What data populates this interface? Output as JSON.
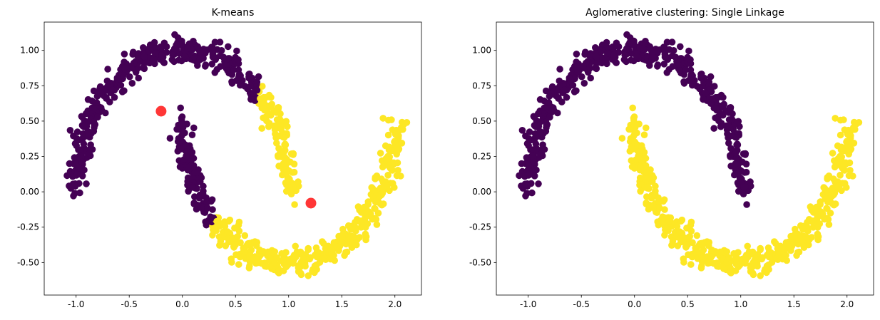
{
  "chart_data": [
    {
      "type": "scatter",
      "title": "K-means",
      "xlabel": "",
      "ylabel": "",
      "xlim": [
        -1.3,
        2.25
      ],
      "ylim": [
        -0.73,
        1.2
      ],
      "xticks": [
        "-1.0",
        "-0.5",
        "0.0",
        "0.5",
        "1.0",
        "1.5",
        "2.0"
      ],
      "yticks": [
        "-0.50",
        "-0.25",
        "0.00",
        "0.25",
        "0.50",
        "0.75",
        "1.00"
      ],
      "grid": false,
      "legend": "none",
      "series": [
        {
          "color": "#440154",
          "description": "cluster 0: upper moon arc from x=-1.1 to x=0.75 plus left part of lower moon up to x=0.3"
        },
        {
          "color": "#fde725",
          "description": "cluster 1: right end of upper moon (x>0.7) plus lower moon from x=0.3 to x=2.1"
        }
      ],
      "centers": {
        "color": "#ff2020",
        "x": [
          -0.2,
          1.21
        ],
        "y": [
          0.57,
          -0.08
        ]
      }
    },
    {
      "type": "scatter",
      "title": "Aglomerative clustering: Single Linkage",
      "xlabel": "",
      "ylabel": "",
      "xlim": [
        -1.3,
        2.25
      ],
      "ylim": [
        -0.73,
        1.2
      ],
      "xticks": [
        "-1.0",
        "-0.5",
        "0.0",
        "0.5",
        "1.0",
        "1.5",
        "2.0"
      ],
      "yticks": [
        "-0.50",
        "-0.25",
        "0.00",
        "0.25",
        "0.50",
        "0.75",
        "1.00"
      ],
      "grid": false,
      "legend": "none",
      "series": [
        {
          "color": "#440154",
          "description": "cluster 0: entire upper moon"
        },
        {
          "color": "#fde725",
          "description": "cluster 1: entire lower moon"
        }
      ]
    }
  ]
}
